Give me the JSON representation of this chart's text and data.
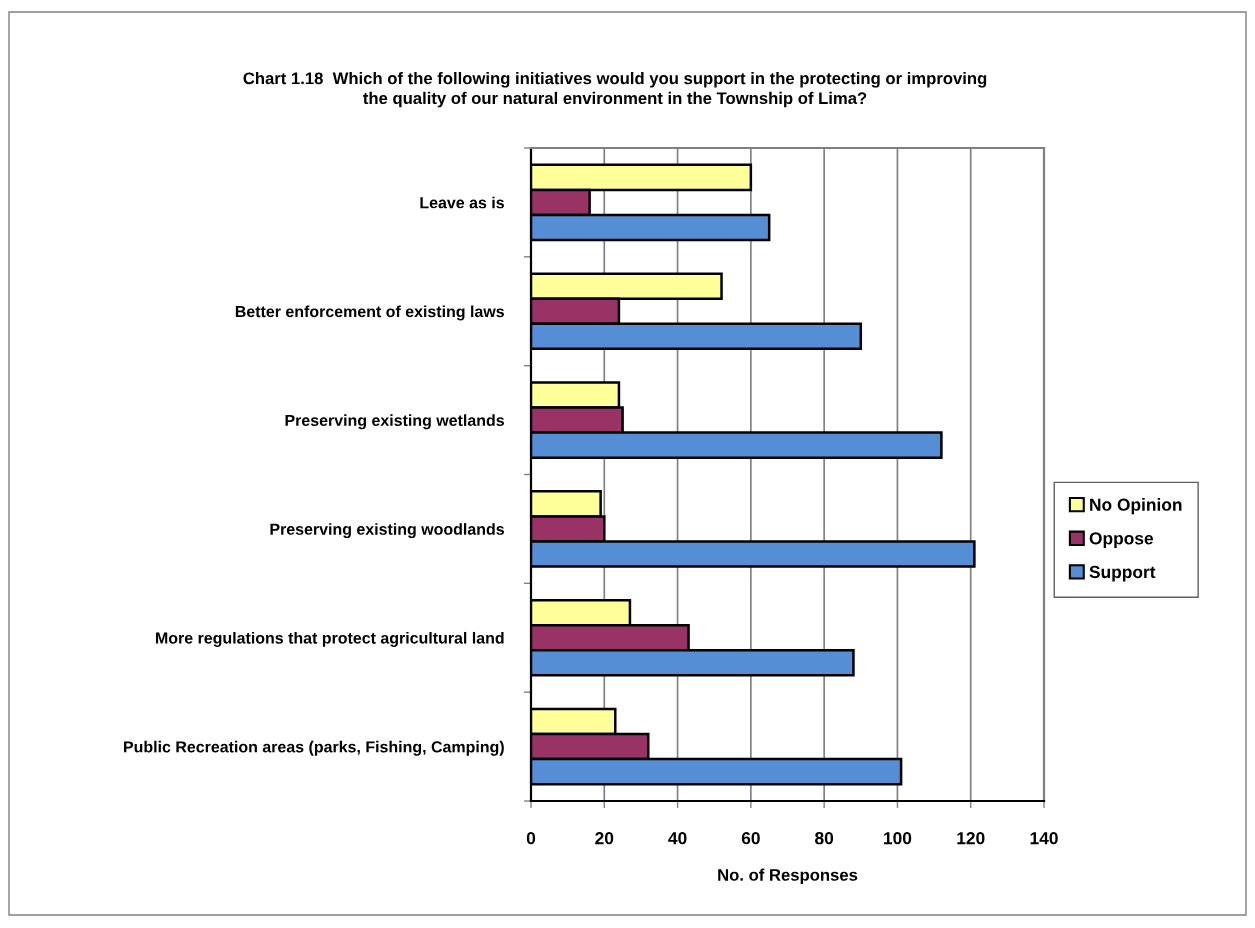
{
  "chart_data": {
    "type": "bar",
    "orientation": "horizontal",
    "title": "Chart 1.18  Which of the following initiatives would you support in the protecting or improving\nthe quality of our natural environment in the Township of Lima?",
    "xlabel": "No. of Responses",
    "categories": [
      "Leave as is",
      "Better enforcement of existing laws",
      "Preserving existing wetlands",
      "Preserving existing woodlands",
      "More regulations that protect agricultural land",
      "Public Recreation areas (parks, Fishing, Camping)"
    ],
    "series": [
      {
        "name": "No Opinion",
        "color": "#ffff99",
        "values": [
          60,
          52,
          24,
          19,
          27,
          23
        ]
      },
      {
        "name": "Oppose",
        "color": "#993366",
        "values": [
          16,
          24,
          25,
          20,
          43,
          32
        ]
      },
      {
        "name": "Support",
        "color": "#558ed5",
        "values": [
          65,
          90,
          112,
          121,
          88,
          101
        ]
      }
    ],
    "xlim": [
      0,
      140
    ],
    "xticks": [
      0,
      20,
      40,
      60,
      80,
      100,
      120,
      140
    ],
    "grid": "x",
    "legend": "right"
  }
}
